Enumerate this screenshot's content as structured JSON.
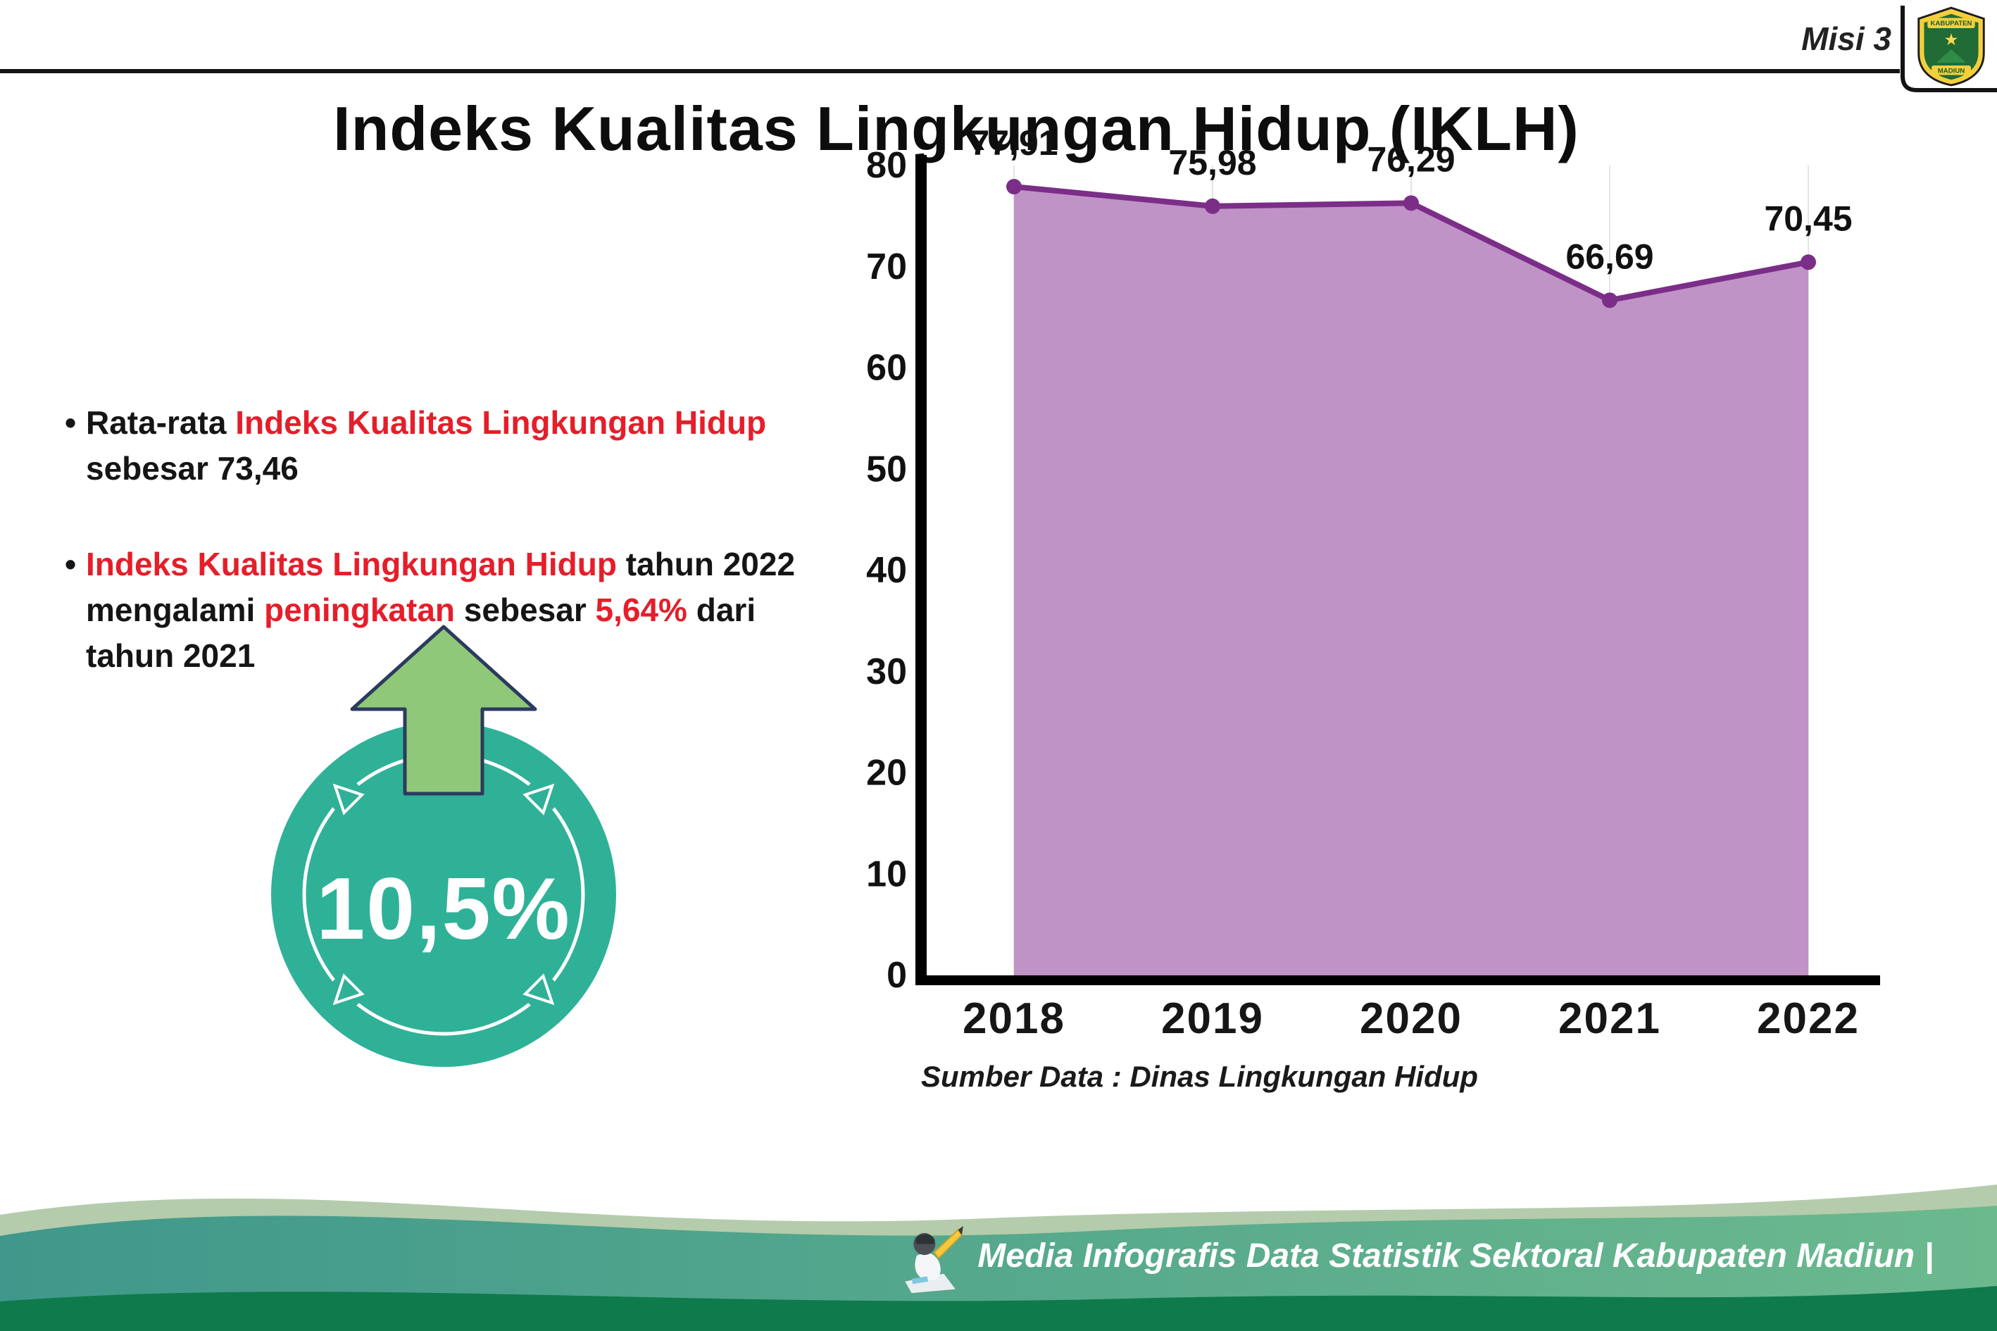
{
  "page": {
    "misi_label": "Misi 3",
    "title": "Indeks Kualitas Lingkungan Hidup (IKLH)"
  },
  "logo": {
    "name": "kabupaten-madiun-seal",
    "top_text": "KABUPATEN",
    "bottom_text": "MADIUN"
  },
  "bullets": {
    "marker": "•",
    "b1": {
      "s0": "Rata-rata ",
      "s1": "Indeks Kualitas Lingkungan Hidup",
      "s2": "sebesar 73,46"
    },
    "b2": {
      "s0": "Indeks Kualitas Lingkungan Hidup",
      "s1": " tahun 2022",
      "s2": "mengalami ",
      "s3": "peningkatan",
      "s4": " sebesar ",
      "s5": "5,64%",
      "s6": " dari",
      "s7": "tahun 2021"
    }
  },
  "badge": {
    "value": "10,5%",
    "icon": "up-arrow-icon"
  },
  "chart_data": {
    "type": "area",
    "title": "Indeks Kualitas Lingkungan Hidup (IKLH)",
    "categories": [
      "2018",
      "2019",
      "2020",
      "2021",
      "2022"
    ],
    "values": [
      77.91,
      75.98,
      76.29,
      66.69,
      70.45
    ],
    "value_labels": [
      "77,91",
      "75,98",
      "76,29",
      "66,69",
      "70,45"
    ],
    "ylim": [
      0,
      80
    ],
    "yticks": [
      0,
      10,
      20,
      30,
      40,
      50,
      60,
      70,
      80
    ],
    "grid": "vertical-light",
    "legend": "none",
    "fill_color": "#bd8dc3",
    "line_color": "#7b2e88",
    "source": "Sumber Data : Dinas Lingkungan Hidup"
  },
  "footer": {
    "text": "Media Infografis Data Statistik Sektoral Kabupaten Madiun |",
    "icon": "writer-mascot-icon"
  },
  "colors": {
    "accent_red": "#e51e2a",
    "badge_teal": "#2fb198",
    "arrow_green": "#8fc878",
    "footer_teal": "#3f988b",
    "footer_dark_green": "#0f7a4b"
  }
}
